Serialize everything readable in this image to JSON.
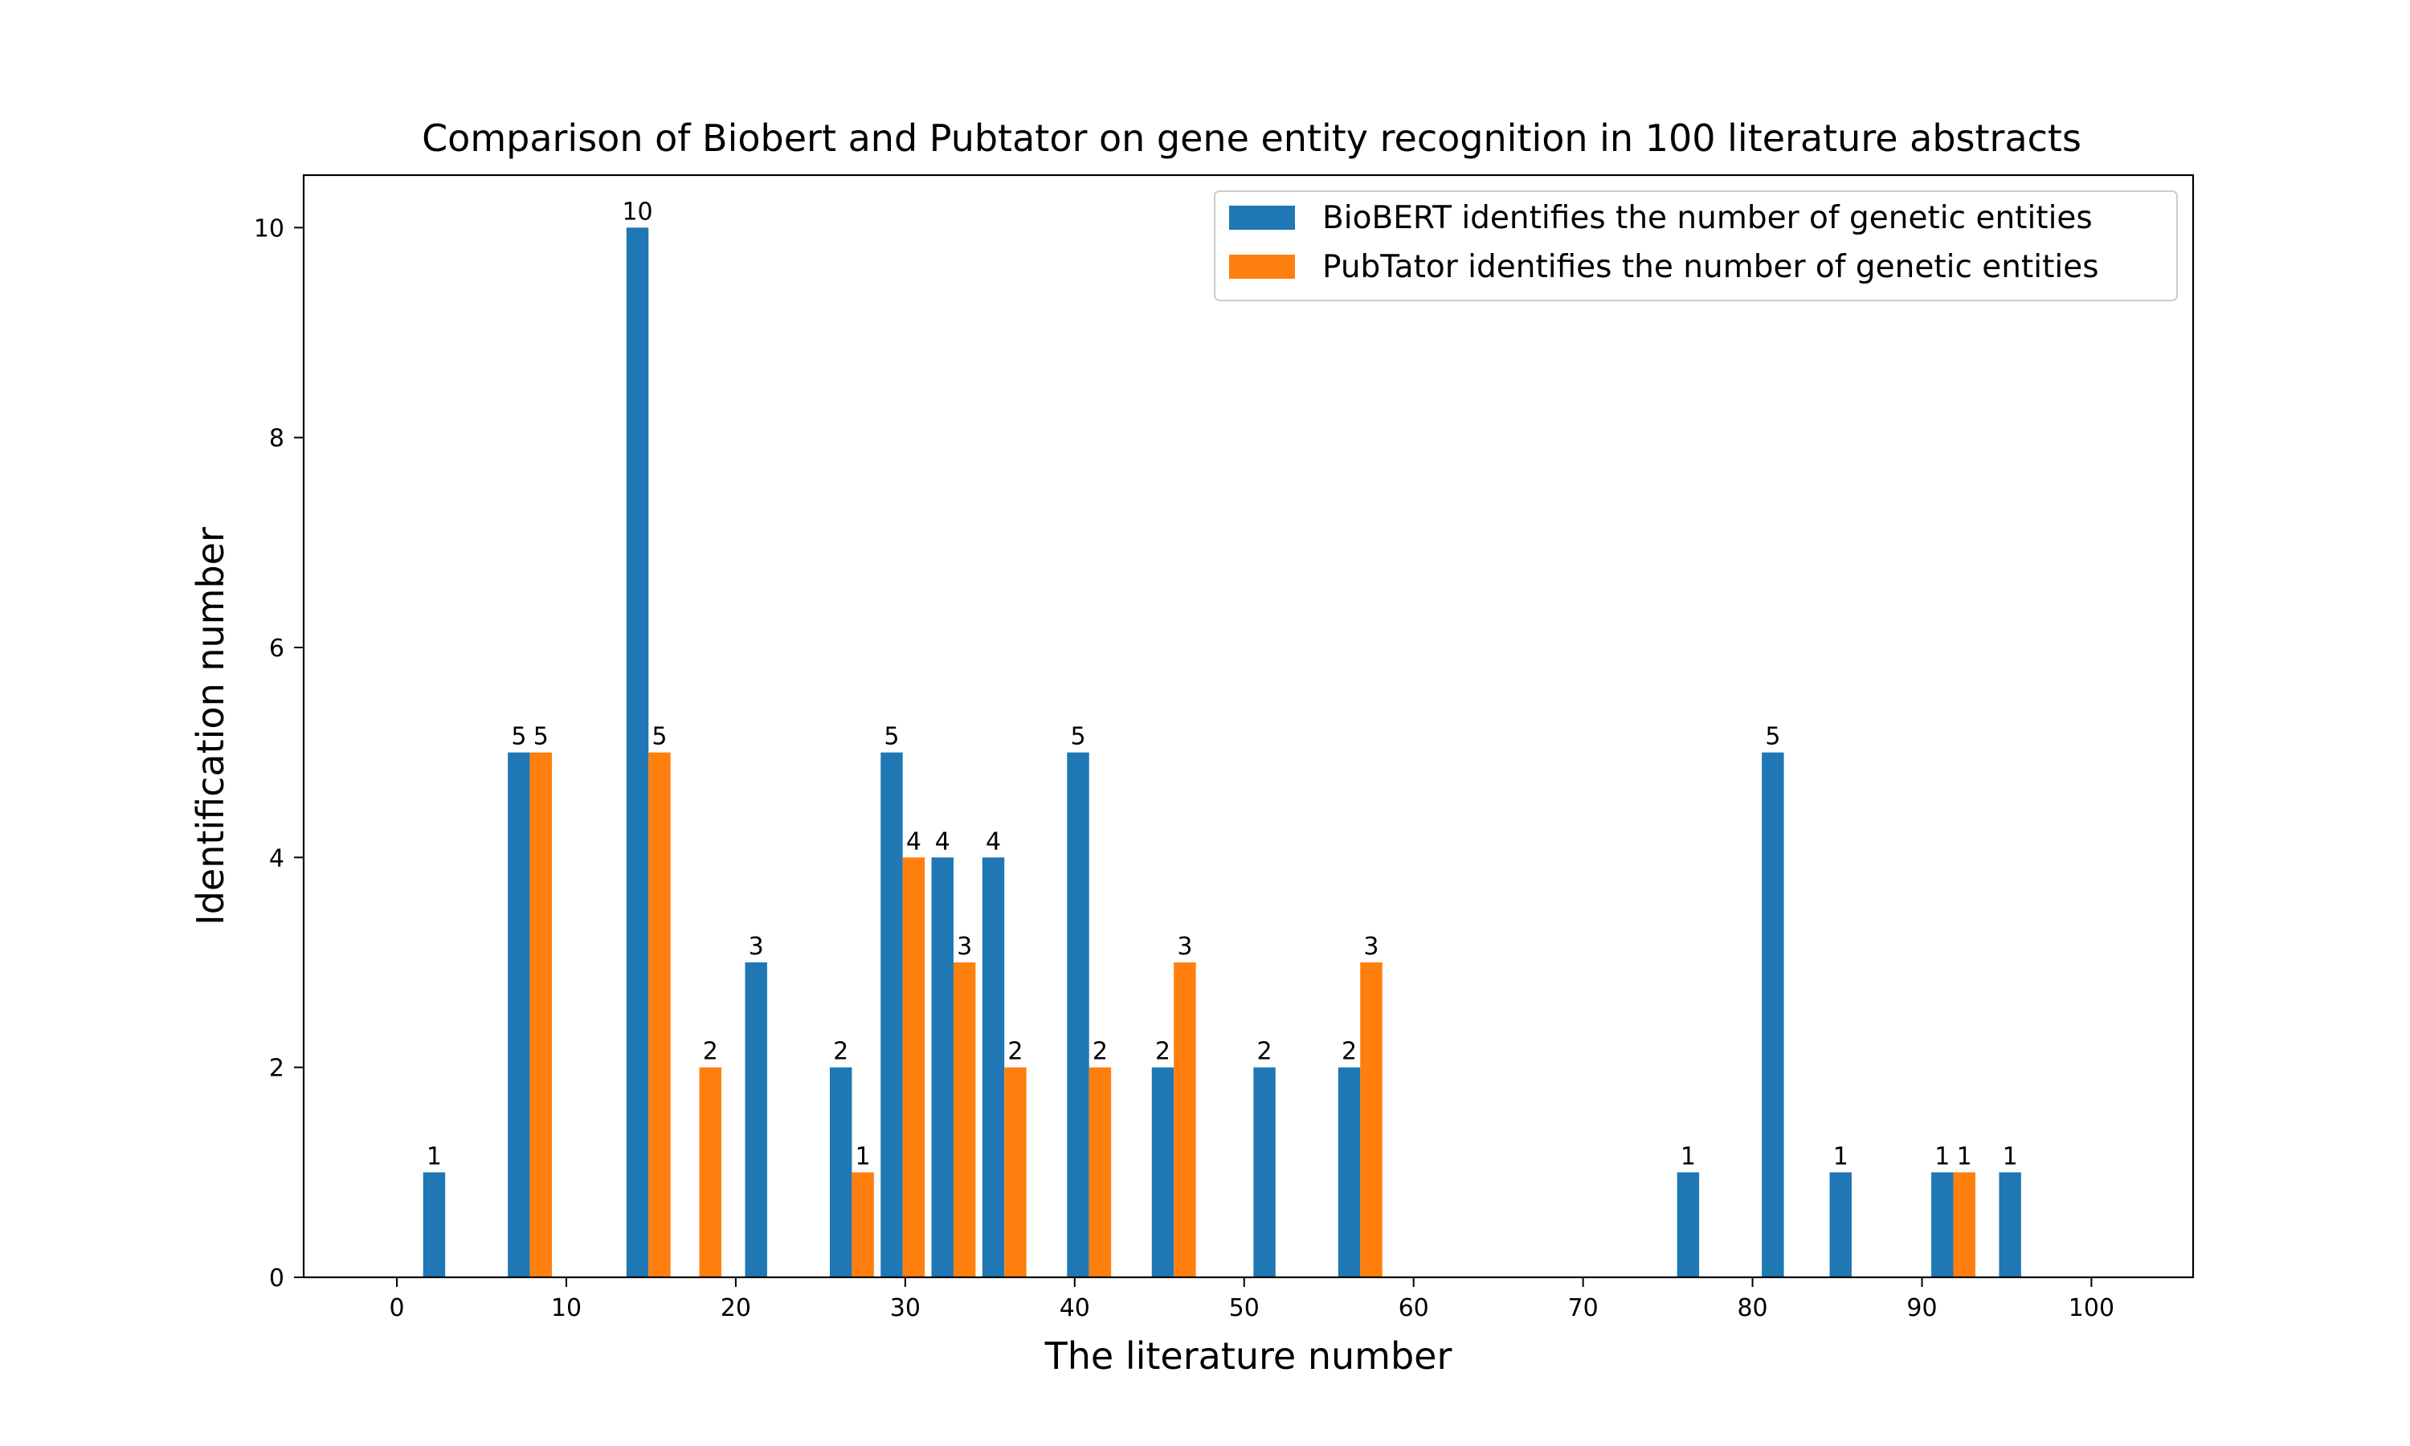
{
  "chart_data": {
    "type": "bar",
    "title": "Comparison of Biobert and Pubtator on gene entity recognition in 100 literature abstracts",
    "xlabel": "The literature number",
    "ylabel": "Identification number",
    "xlim": [
      -5.5,
      106
    ],
    "ylim": [
      0,
      10.5
    ],
    "xticks": [
      0,
      10,
      20,
      30,
      40,
      50,
      60,
      70,
      80,
      90,
      100
    ],
    "yticks": [
      0,
      2,
      4,
      6,
      8,
      10
    ],
    "bar_width": 1.3,
    "grid": false,
    "legend_position": "top-right",
    "series": [
      {
        "name": "BioBERT identifies the number of genetic entities",
        "color": "#1f77b4",
        "x": [
          2.2,
          7.2,
          14.2,
          21.2,
          26.2,
          29.2,
          32.2,
          35.2,
          40.2,
          45.2,
          51.2,
          56.2,
          76.2,
          81.2,
          85.2,
          91.2,
          95.2
        ],
        "values": [
          1,
          5,
          10,
          3,
          2,
          5,
          4,
          4,
          5,
          2,
          2,
          2,
          1,
          5,
          1,
          1,
          1
        ]
      },
      {
        "name": "PubTator identifies the number of genetic entities",
        "color": "#ff7f0e",
        "x": [
          8.5,
          15.5,
          18.5,
          27.5,
          30.5,
          33.5,
          36.5,
          41.5,
          46.5,
          57.5,
          92.5
        ],
        "values": [
          5,
          5,
          2,
          1,
          4,
          3,
          2,
          2,
          3,
          3,
          1
        ]
      }
    ]
  }
}
